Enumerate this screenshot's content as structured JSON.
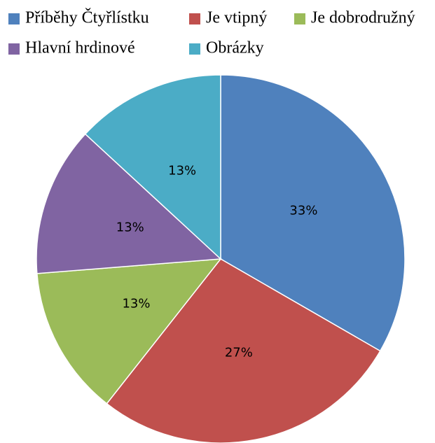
{
  "chart_data": {
    "type": "pie",
    "categories": [
      "Příběhy Čtyřlístku",
      "Je vtipný",
      "Je dobrodružný",
      "Hlavní hrdinové",
      "Obrázky"
    ],
    "values": [
      33,
      27,
      13,
      13,
      13
    ],
    "value_labels": [
      "33%",
      "27%",
      "13%",
      "13%",
      "13%"
    ],
    "colors": [
      "#4f81bd",
      "#c0504d",
      "#9bbb59",
      "#8064a2",
      "#4bacc6"
    ],
    "legend": "top"
  }
}
